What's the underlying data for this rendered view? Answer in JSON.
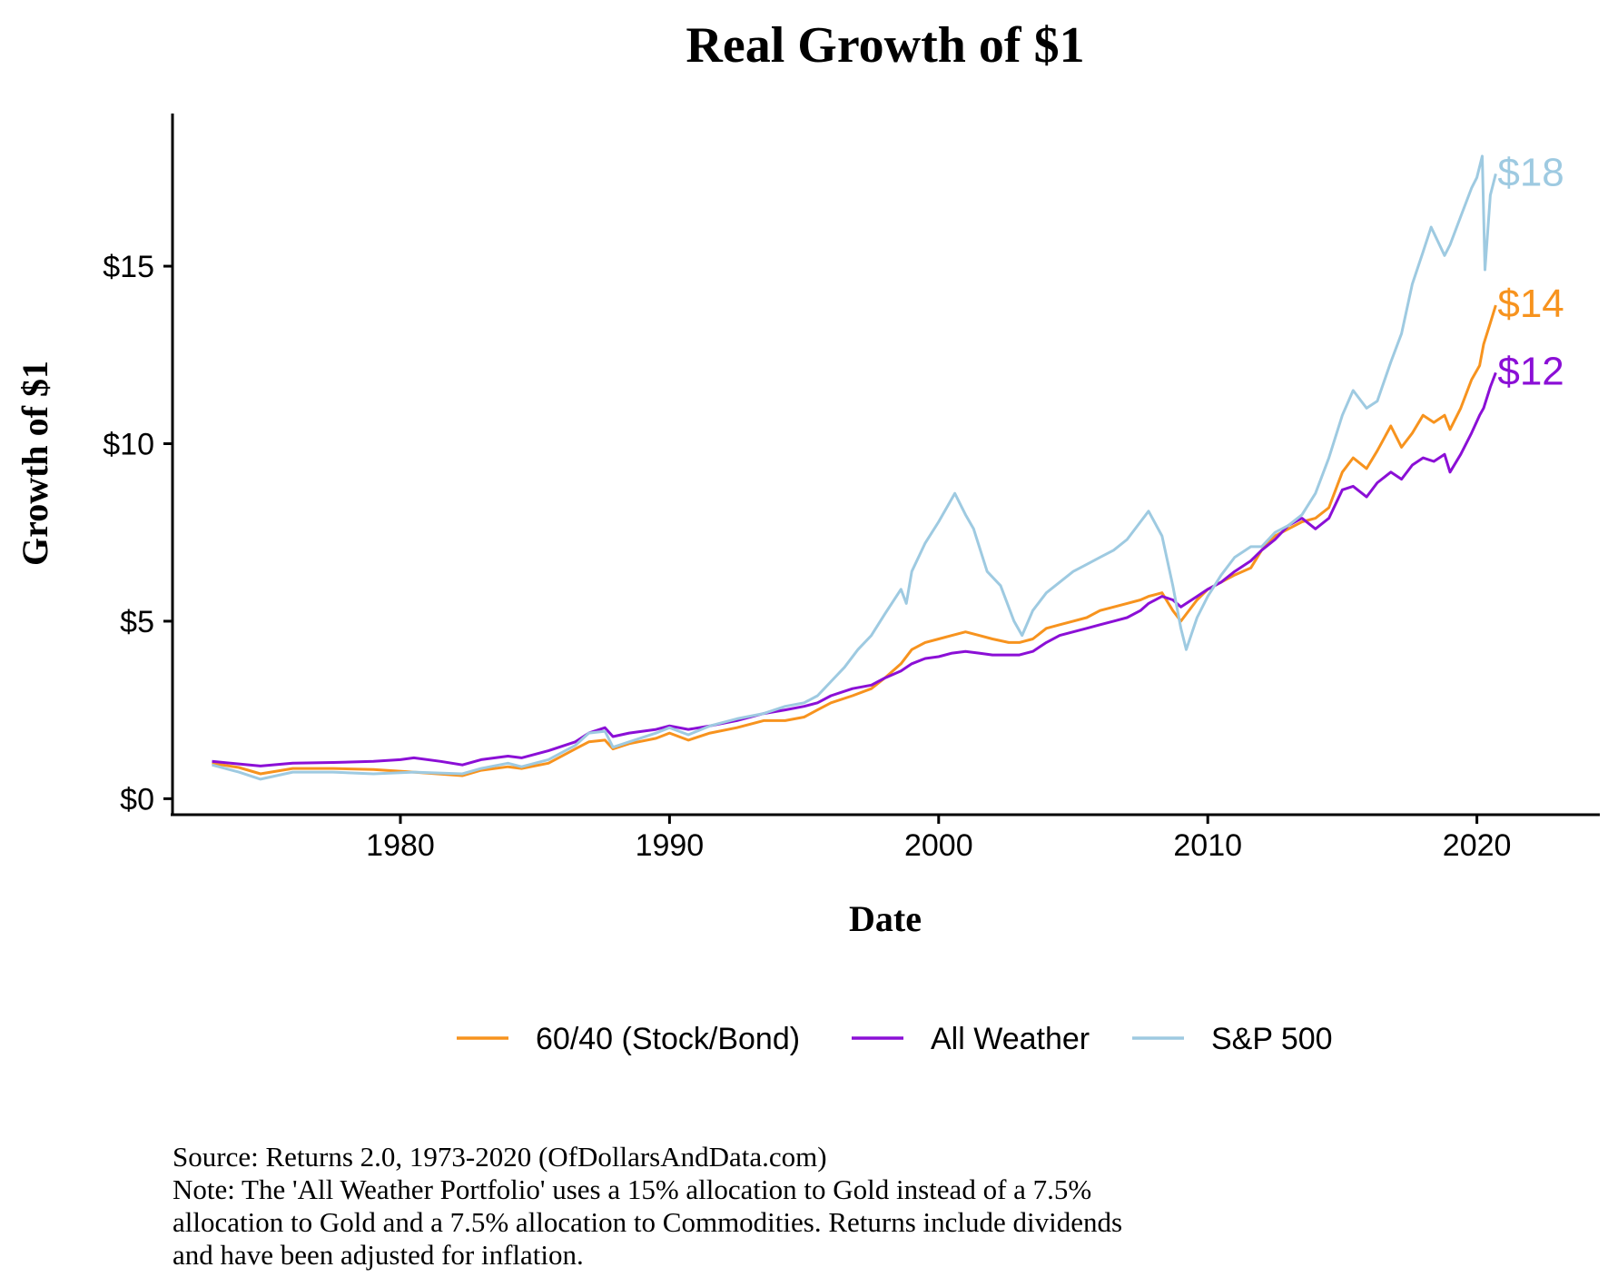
{
  "chart_data": {
    "type": "line",
    "title": "Real Growth of $1",
    "xlabel": "Date",
    "ylabel": "Growth of $1",
    "xlim": [
      1971.6,
      2024.5
    ],
    "ylim": [
      -0.4,
      19.3
    ],
    "x_ticks": [
      1980,
      1990,
      2000,
      2010,
      2020
    ],
    "x_tick_labels": [
      "1980",
      "1990",
      "2000",
      "2010",
      "2020"
    ],
    "y_ticks": [
      0,
      5,
      10,
      15
    ],
    "y_tick_labels": [
      "$0",
      "$5",
      "$10",
      "$15"
    ],
    "grid": false,
    "legend_position": "bottom",
    "series": [
      {
        "name": "60/40 (Stock/Bond)",
        "color": "#F7931E",
        "end_label": "$14",
        "x": [
          1973.0,
          1974.0,
          1974.8,
          1976.0,
          1977.5,
          1979.0,
          1980.5,
          1982.3,
          1983.0,
          1984.0,
          1984.5,
          1985.5,
          1986.5,
          1987.0,
          1987.6,
          1987.9,
          1988.5,
          1989.5,
          1990.0,
          1990.7,
          1991.5,
          1992.5,
          1993.5,
          1994.3,
          1995.0,
          1995.5,
          1996.0,
          1996.8,
          1997.5,
          1998.0,
          1998.6,
          1999.0,
          1999.5,
          2000.0,
          2000.5,
          2001.0,
          2001.5,
          2002.0,
          2002.6,
          2003.0,
          2003.5,
          2004.0,
          2004.5,
          2005.0,
          2005.5,
          2006.0,
          2006.5,
          2007.0,
          2007.5,
          2007.8,
          2008.3,
          2008.7,
          2009.0,
          2009.2,
          2009.6,
          2010.0,
          2010.5,
          2011.0,
          2011.6,
          2012.0,
          2012.5,
          2013.0,
          2013.5,
          2014.0,
          2014.5,
          2015.0,
          2015.4,
          2015.9,
          2016.3,
          2016.8,
          2017.2,
          2017.6,
          2018.0,
          2018.4,
          2018.8,
          2019.0,
          2019.4,
          2019.8,
          2020.1,
          2020.25,
          2020.5,
          2020.7
        ],
        "y": [
          1.0,
          0.88,
          0.7,
          0.85,
          0.85,
          0.82,
          0.75,
          0.65,
          0.8,
          0.9,
          0.85,
          1.0,
          1.4,
          1.6,
          1.65,
          1.4,
          1.55,
          1.7,
          1.85,
          1.65,
          1.85,
          2.0,
          2.2,
          2.2,
          2.3,
          2.5,
          2.7,
          2.9,
          3.1,
          3.4,
          3.8,
          4.2,
          4.4,
          4.5,
          4.6,
          4.7,
          4.6,
          4.5,
          4.4,
          4.4,
          4.5,
          4.8,
          4.9,
          5.0,
          5.1,
          5.3,
          5.4,
          5.5,
          5.6,
          5.7,
          5.8,
          5.3,
          5.0,
          5.2,
          5.6,
          5.9,
          6.1,
          6.3,
          6.5,
          7.0,
          7.4,
          7.6,
          7.8,
          7.9,
          8.2,
          9.2,
          9.6,
          9.3,
          9.8,
          10.5,
          9.9,
          10.3,
          10.8,
          10.6,
          10.8,
          10.4,
          11.0,
          11.8,
          12.2,
          12.8,
          13.4,
          13.9
        ]
      },
      {
        "name": "All Weather",
        "color": "#8B0FD6",
        "end_label": "$12",
        "x": [
          1973.0,
          1974.0,
          1974.8,
          1976.0,
          1977.5,
          1979.0,
          1980.0,
          1980.5,
          1981.5,
          1982.3,
          1983.0,
          1984.0,
          1984.5,
          1985.5,
          1986.5,
          1987.0,
          1987.6,
          1987.9,
          1988.5,
          1989.5,
          1990.0,
          1990.7,
          1991.5,
          1992.5,
          1993.5,
          1994.3,
          1995.0,
          1995.5,
          1996.0,
          1996.8,
          1997.5,
          1998.0,
          1998.6,
          1999.0,
          1999.5,
          2000.0,
          2000.5,
          2001.0,
          2001.5,
          2002.0,
          2002.6,
          2003.0,
          2003.5,
          2004.0,
          2004.5,
          2005.0,
          2005.5,
          2006.0,
          2006.5,
          2007.0,
          2007.5,
          2007.8,
          2008.3,
          2008.7,
          2009.0,
          2009.2,
          2009.6,
          2010.0,
          2010.5,
          2011.0,
          2011.6,
          2012.0,
          2012.5,
          2013.0,
          2013.5,
          2014.0,
          2014.5,
          2015.0,
          2015.4,
          2015.9,
          2016.3,
          2016.8,
          2017.2,
          2017.6,
          2018.0,
          2018.4,
          2018.8,
          2019.0,
          2019.4,
          2019.8,
          2020.1,
          2020.25,
          2020.5,
          2020.7
        ],
        "y": [
          1.05,
          0.98,
          0.92,
          1.0,
          1.02,
          1.05,
          1.1,
          1.15,
          1.05,
          0.95,
          1.1,
          1.2,
          1.15,
          1.35,
          1.6,
          1.85,
          2.0,
          1.75,
          1.85,
          1.95,
          2.05,
          1.95,
          2.05,
          2.2,
          2.4,
          2.5,
          2.6,
          2.7,
          2.9,
          3.1,
          3.2,
          3.4,
          3.6,
          3.8,
          3.95,
          4.0,
          4.1,
          4.15,
          4.1,
          4.05,
          4.05,
          4.05,
          4.15,
          4.4,
          4.6,
          4.7,
          4.8,
          4.9,
          5.0,
          5.1,
          5.3,
          5.5,
          5.7,
          5.6,
          5.4,
          5.5,
          5.7,
          5.9,
          6.1,
          6.4,
          6.7,
          7.0,
          7.3,
          7.7,
          7.9,
          7.6,
          7.9,
          8.7,
          8.8,
          8.5,
          8.9,
          9.2,
          9.0,
          9.4,
          9.6,
          9.5,
          9.7,
          9.2,
          9.7,
          10.3,
          10.8,
          11.0,
          11.6,
          12.0
        ]
      },
      {
        "name": "S&P 500",
        "color": "#9ECAE1",
        "end_label": "$18",
        "x": [
          1973.0,
          1974.0,
          1974.8,
          1976.0,
          1977.5,
          1979.0,
          1980.5,
          1982.3,
          1983.0,
          1984.0,
          1984.5,
          1985.5,
          1986.5,
          1987.0,
          1987.6,
          1987.9,
          1988.5,
          1989.5,
          1990.0,
          1990.7,
          1991.5,
          1992.5,
          1993.5,
          1994.3,
          1995.0,
          1995.5,
          1996.0,
          1996.5,
          1997.0,
          1997.5,
          1998.0,
          1998.6,
          1998.8,
          1999.0,
          1999.5,
          2000.0,
          2000.3,
          2000.6,
          2001.0,
          2001.3,
          2001.8,
          2002.3,
          2002.8,
          2003.1,
          2003.5,
          2004.0,
          2004.5,
          2005.0,
          2005.5,
          2006.0,
          2006.5,
          2007.0,
          2007.5,
          2007.8,
          2008.3,
          2008.7,
          2009.0,
          2009.2,
          2009.6,
          2010.0,
          2010.5,
          2011.0,
          2011.6,
          2012.0,
          2012.5,
          2013.0,
          2013.5,
          2014.0,
          2014.5,
          2015.0,
          2015.4,
          2015.9,
          2016.3,
          2016.8,
          2017.2,
          2017.6,
          2018.0,
          2018.3,
          2018.8,
          2019.0,
          2019.4,
          2019.8,
          2020.0,
          2020.2,
          2020.3,
          2020.5,
          2020.7
        ],
        "y": [
          0.95,
          0.75,
          0.55,
          0.75,
          0.75,
          0.7,
          0.75,
          0.7,
          0.85,
          1.0,
          0.9,
          1.1,
          1.5,
          1.85,
          1.9,
          1.45,
          1.6,
          1.85,
          2.0,
          1.8,
          2.05,
          2.25,
          2.4,
          2.6,
          2.7,
          2.9,
          3.3,
          3.7,
          4.2,
          4.6,
          5.2,
          5.9,
          5.5,
          6.4,
          7.2,
          7.8,
          8.2,
          8.6,
          8.0,
          7.6,
          6.4,
          6.0,
          5.0,
          4.6,
          5.3,
          5.8,
          6.1,
          6.4,
          6.6,
          6.8,
          7.0,
          7.3,
          7.8,
          8.1,
          7.4,
          6.0,
          4.8,
          4.2,
          5.1,
          5.7,
          6.3,
          6.8,
          7.1,
          7.1,
          7.5,
          7.7,
          8.0,
          8.6,
          9.6,
          10.8,
          11.5,
          11.0,
          11.2,
          12.3,
          13.1,
          14.5,
          15.4,
          16.1,
          15.3,
          15.6,
          16.4,
          17.2,
          17.5,
          18.1,
          14.9,
          17.0,
          17.6
        ]
      }
    ],
    "annotations": [
      "Source:  Returns 2.0, 1973-2020 (OfDollarsAndData.com)",
      "Note: The 'All Weather Portfolio' uses a 15% allocation to Gold instead of a 7.5%",
      "allocation to Gold and a 7.5% allocation to Commodities. Returns include dividends",
      "and have been adjusted for inflation."
    ]
  },
  "legend": {
    "items": [
      {
        "label": "60/40 (Stock/Bond)",
        "color": "#F7931E"
      },
      {
        "label": "All Weather",
        "color": "#8B0FD6"
      },
      {
        "label": "S&P 500",
        "color": "#9ECAE1"
      }
    ]
  },
  "footer": {
    "source": "Source:  Returns 2.0, 1973-2020 (OfDollarsAndData.com)",
    "note_lines": [
      "Note: The 'All Weather Portfolio' uses a 15% allocation to Gold instead of a 7.5%",
      "allocation to Gold and a 7.5% allocation to Commodities. Returns include dividends",
      "and have been adjusted for inflation."
    ]
  }
}
